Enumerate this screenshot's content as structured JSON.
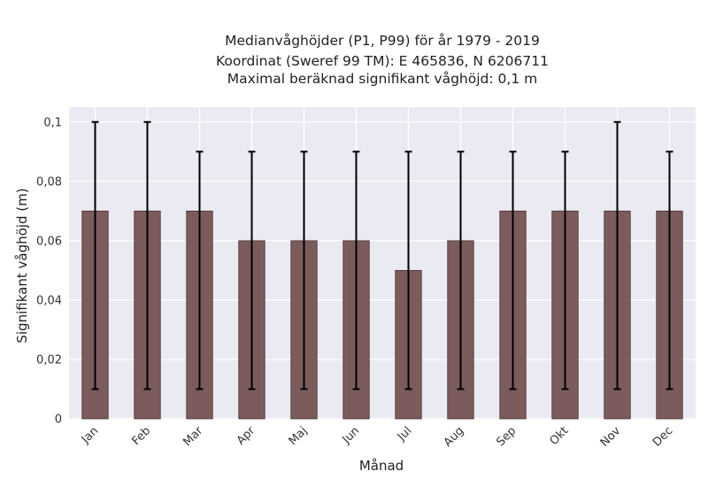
{
  "chart_data": {
    "type": "bar",
    "title_lines": [
      "Medianvåghöjder (P1, P99) för år 1979 - 2019",
      "Koordinat (Sweref 99 TM): E 465836, N 6206711",
      "Maximal beräknad signifikant våghöjd: 0,1 m"
    ],
    "xlabel": "Månad",
    "ylabel": "Signifikant våghöjd (m)",
    "categories": [
      "Jan",
      "Feb",
      "Mar",
      "Apr",
      "Maj",
      "Jun",
      "Jul",
      "Aug",
      "Sep",
      "Okt",
      "Nov",
      "Dec"
    ],
    "values": [
      0.07,
      0.07,
      0.07,
      0.06,
      0.06,
      0.06,
      0.05,
      0.06,
      0.07,
      0.07,
      0.07,
      0.07
    ],
    "error_low": [
      0.01,
      0.01,
      0.01,
      0.01,
      0.01,
      0.01,
      0.01,
      0.01,
      0.01,
      0.01,
      0.01,
      0.01
    ],
    "error_high": [
      0.1,
      0.1,
      0.09,
      0.09,
      0.09,
      0.09,
      0.09,
      0.09,
      0.09,
      0.09,
      0.1,
      0.09
    ],
    "ylim": [
      0,
      0.105
    ],
    "yticks": [
      0,
      0.02,
      0.04,
      0.06,
      0.08,
      0.1
    ],
    "ytick_labels": [
      "0",
      "0,02",
      "0,04",
      "0,06",
      "0,08",
      "0,1"
    ],
    "grid": true,
    "colors": {
      "bar": "#7b5b5b",
      "bar_edge": "#4a3434",
      "error": "#000000",
      "background": "#eaeaf2",
      "grid": "#ffffff"
    }
  }
}
